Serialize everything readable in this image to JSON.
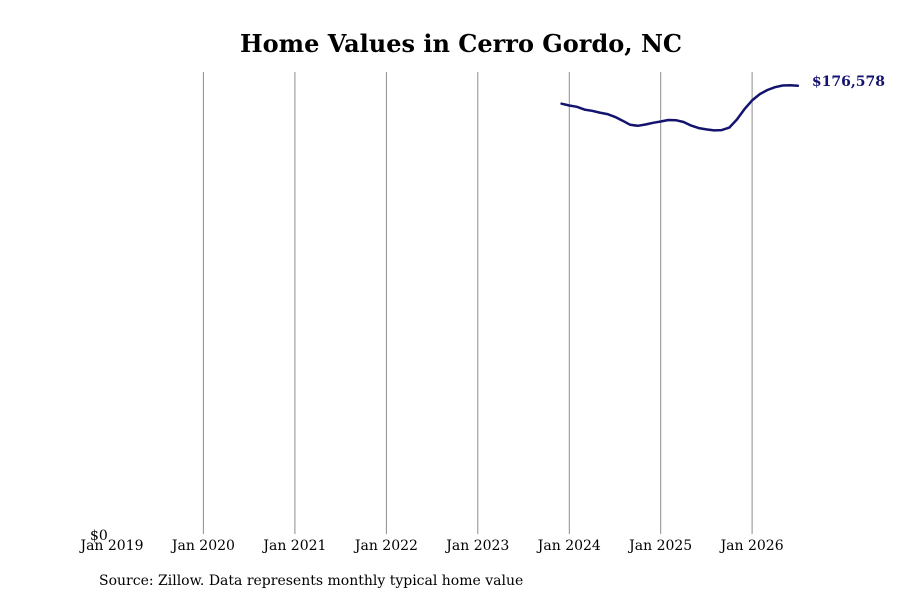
{
  "chart_data": {
    "type": "line",
    "title": "Home Values in Cerro Gordo, NC",
    "xlabel": "",
    "ylabel": "",
    "x_ticks": [
      "Jan 2019",
      "Jan 2020",
      "Jan 2021",
      "Jan 2022",
      "Jan 2023",
      "Jan 2024",
      "Jan 2025",
      "Jan 2026"
    ],
    "y_ticks": [
      "$0"
    ],
    "xlim": [
      "2019-01",
      "2026-08"
    ],
    "ylim": [
      0,
      182000
    ],
    "grid": "vertical",
    "legend": "none",
    "series": [
      {
        "color": "#14146e",
        "x": [
          "2023-12",
          "2024-01",
          "2024-02",
          "2024-03",
          "2024-04",
          "2024-05",
          "2024-06",
          "2024-07",
          "2024-08",
          "2024-09",
          "2024-10",
          "2024-11",
          "2024-12",
          "2025-01",
          "2025-02",
          "2025-03",
          "2025-04",
          "2025-05",
          "2025-06",
          "2025-07",
          "2025-08",
          "2025-09",
          "2025-10",
          "2025-11",
          "2025-12",
          "2026-01",
          "2026-02",
          "2026-03",
          "2026-04",
          "2026-05",
          "2026-06",
          "2026-07"
        ],
        "values": [
          169500,
          168800,
          168300,
          167200,
          166700,
          166000,
          165400,
          164300,
          162800,
          161200,
          160800,
          161300,
          162000,
          162500,
          163100,
          163000,
          162300,
          160900,
          159900,
          159400,
          159000,
          159100,
          160100,
          163300,
          167400,
          170800,
          173300,
          174900,
          176000,
          176700,
          176800,
          176578
        ]
      }
    ],
    "end_label": "$176,578"
  },
  "footer": {
    "source": "Source: Zillow. Data represents monthly typical home value"
  }
}
